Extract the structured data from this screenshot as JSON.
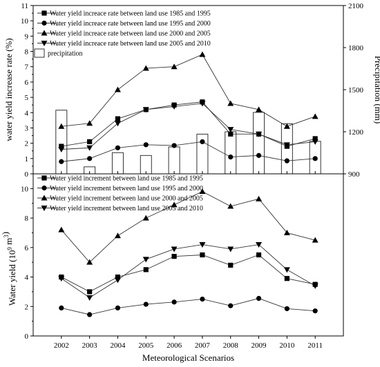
{
  "chart_data": [
    {
      "type": "line",
      "x": [
        "2002",
        "2003",
        "2004",
        "2005",
        "2006",
        "2007",
        "2008",
        "2009",
        "2010",
        "2011"
      ],
      "ylabel": "water yield increase rate  (%)",
      "y2label": "Precipitation (mm)",
      "ylim": [
        0,
        11
      ],
      "y2lim": [
        900,
        2100
      ],
      "yticks": [
        "0",
        "1",
        "2",
        "3",
        "4",
        "5",
        "6",
        "7",
        "8",
        "9",
        "10",
        "11"
      ],
      "y2ticks": [
        "900",
        "1200",
        "1500",
        "1800",
        "2100"
      ],
      "series": [
        {
          "name": "Water yield increace rate between land use 1985 and 1995",
          "marker": "square",
          "values": [
            1.8,
            2.1,
            3.6,
            4.2,
            4.5,
            4.7,
            2.6,
            2.6,
            1.8,
            2.3
          ]
        },
        {
          "name": "Water yield increace rate between land use 1995 and 2000",
          "marker": "circle",
          "values": [
            0.8,
            1.0,
            1.7,
            1.9,
            1.85,
            2.1,
            1.1,
            1.2,
            0.85,
            1.0
          ]
        },
        {
          "name": "Water yield increace rate between land use 2000 and 2005",
          "marker": "triangle-up",
          "values": [
            3.1,
            3.3,
            5.5,
            6.9,
            7.0,
            7.8,
            4.6,
            4.2,
            3.1,
            3.75
          ]
        },
        {
          "name": "Water yield increace rate between land use 2005 and 2010",
          "marker": "triangle-down",
          "values": [
            1.6,
            1.7,
            3.3,
            4.2,
            4.4,
            4.6,
            2.9,
            2.6,
            1.9,
            2.1
          ]
        }
      ],
      "bars": {
        "name": "precipitation",
        "values": [
          1354,
          950,
          1051,
          1031,
          1092,
          1183,
          1200,
          1338,
          1257,
          1132
        ]
      }
    },
    {
      "type": "line",
      "x": [
        "2002",
        "2003",
        "2004",
        "2005",
        "2006",
        "2007",
        "2008",
        "2009",
        "2010",
        "2011"
      ],
      "xlabel": "Meteorological Scenarios",
      "ylabel_main": "Water yield (10",
      "ylabel_exp": "9",
      "ylabel_unit": " m",
      "ylabel_exp2": "3",
      "ylabel_close": ")",
      "ylim": [
        0,
        11
      ],
      "yticks": [
        "0",
        "2",
        "4",
        "6",
        "8",
        "10"
      ],
      "series": [
        {
          "name": "Water yield increment between land use 1985 and 1995",
          "marker": "square",
          "values": [
            4.0,
            3.0,
            4.0,
            4.5,
            5.4,
            5.5,
            4.8,
            5.5,
            3.9,
            3.5
          ]
        },
        {
          "name": "Water yield increment between land use 1995 and 2000",
          "marker": "circle",
          "values": [
            1.9,
            1.45,
            1.9,
            2.15,
            2.3,
            2.5,
            2.05,
            2.55,
            1.85,
            1.7
          ]
        },
        {
          "name": "Water yield increment between land use 2000 and 2005",
          "marker": "triangle-up",
          "values": [
            7.2,
            5.0,
            6.8,
            8.0,
            8.9,
            9.8,
            8.8,
            9.3,
            7.0,
            6.5
          ]
        },
        {
          "name": "Water yield increment between land use 2005 and 2010",
          "marker": "triangle-down",
          "values": [
            3.9,
            2.6,
            3.8,
            5.2,
            5.9,
            6.2,
            5.9,
            6.2,
            4.5,
            3.4
          ]
        }
      ]
    }
  ]
}
